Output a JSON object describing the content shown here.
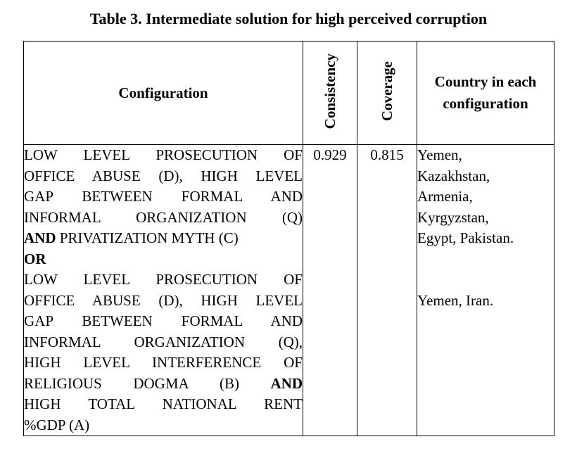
{
  "title": "Table 3. Intermediate solution for high perceived corruption",
  "table": {
    "headers": {
      "configuration": "Configuration",
      "consistency": "Consistency",
      "coverage": "Coverage",
      "country": "Country in each configuration"
    },
    "row": {
      "consistency": "0.929",
      "coverage": "0.815",
      "configuration_lines": [
        {
          "justify": true,
          "segments": [
            {
              "text": "LOW LEVEL PROSECUTION OF",
              "bold": false
            }
          ]
        },
        {
          "justify": true,
          "segments": [
            {
              "text": "OFFICE ABUSE (D), HIGH LEVEL",
              "bold": false
            }
          ]
        },
        {
          "justify": true,
          "segments": [
            {
              "text": "GAP BETWEEN FORMAL AND",
              "bold": false
            }
          ]
        },
        {
          "justify": true,
          "segments": [
            {
              "text": "INFORMAL ORGANIZATION (Q)",
              "bold": false
            }
          ]
        },
        {
          "justify": false,
          "segments": [
            {
              "text": "AND",
              "bold": true
            },
            {
              "text": " PRIVATIZATION MYTH (C)",
              "bold": false
            }
          ]
        },
        {
          "justify": false,
          "segments": [
            {
              "text": "OR",
              "bold": true
            }
          ]
        },
        {
          "justify": true,
          "segments": [
            {
              "text": "LOW LEVEL PROSECUTION OF",
              "bold": false
            }
          ]
        },
        {
          "justify": true,
          "segments": [
            {
              "text": "OFFICE ABUSE (D), HIGH LEVEL",
              "bold": false
            }
          ]
        },
        {
          "justify": true,
          "segments": [
            {
              "text": "GAP BETWEEN FORMAL AND",
              "bold": false
            }
          ]
        },
        {
          "justify": true,
          "segments": [
            {
              "text": "INFORMAL ORGANIZATION (Q),",
              "bold": false
            }
          ]
        },
        {
          "justify": true,
          "segments": [
            {
              "text": "HIGH LEVEL INTERFERENCE OF",
              "bold": false
            }
          ]
        },
        {
          "justify": true,
          "segments": [
            {
              "text": "RELIGIOUS DOGMA (B) ",
              "bold": false
            },
            {
              "text": "AND",
              "bold": true
            }
          ]
        },
        {
          "justify": true,
          "segments": [
            {
              "text": "HIGH TOTAL NATIONAL RENT",
              "bold": false
            }
          ]
        },
        {
          "justify": false,
          "segments": [
            {
              "text": "%GDP (A)",
              "bold": false
            }
          ]
        }
      ],
      "country_lines": [
        "Yemen,",
        "Kazakhstan,",
        "Armenia,",
        "Kyrgyzstan,",
        "Egypt, Pakistan.",
        "",
        "",
        "Yemen, Iran."
      ]
    }
  }
}
